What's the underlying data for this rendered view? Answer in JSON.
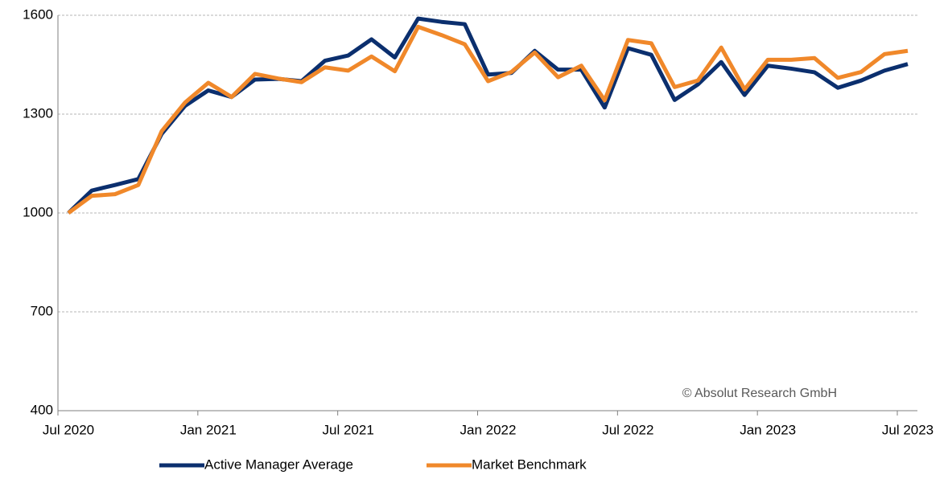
{
  "chart_data": {
    "type": "line",
    "categories": [
      "Jul 2020",
      null,
      null,
      null,
      null,
      null,
      "Jan 2021",
      null,
      null,
      null,
      null,
      null,
      "Jul 2021",
      null,
      null,
      null,
      null,
      null,
      "Jan 2022",
      null,
      null,
      null,
      null,
      null,
      "Jul 2022",
      null,
      null,
      null,
      null,
      null,
      "Jan 2023",
      null,
      null,
      null,
      null,
      null,
      "Jul 2023"
    ],
    "series": [
      {
        "name": "Active Manager Average",
        "color": "#0b2f6e",
        "values": [
          1000,
          1068,
          1085,
          1103,
          1240,
          1325,
          1372,
          1352,
          1405,
          1407,
          1400,
          1462,
          1478,
          1527,
          1472,
          1590,
          1580,
          1573,
          1420,
          1425,
          1492,
          1435,
          1435,
          1320,
          1500,
          1480,
          1343,
          1390,
          1458,
          1358,
          1447,
          1438,
          1427,
          1380,
          1402,
          1432,
          1452
        ]
      },
      {
        "name": "Market Benchmark",
        "color": "#f0882a",
        "values": [
          1000,
          1052,
          1057,
          1085,
          1248,
          1335,
          1395,
          1352,
          1422,
          1408,
          1397,
          1442,
          1432,
          1475,
          1430,
          1565,
          1540,
          1512,
          1400,
          1428,
          1487,
          1412,
          1447,
          1342,
          1525,
          1515,
          1382,
          1402,
          1502,
          1375,
          1465,
          1465,
          1470,
          1410,
          1428,
          1482,
          1492
        ]
      }
    ],
    "ylim": [
      400,
      1600
    ],
    "yticks": [
      400,
      700,
      1000,
      1300,
      1600
    ],
    "grid": true,
    "annotation": "© Absolut Research GmbH",
    "legend": "bottom"
  }
}
